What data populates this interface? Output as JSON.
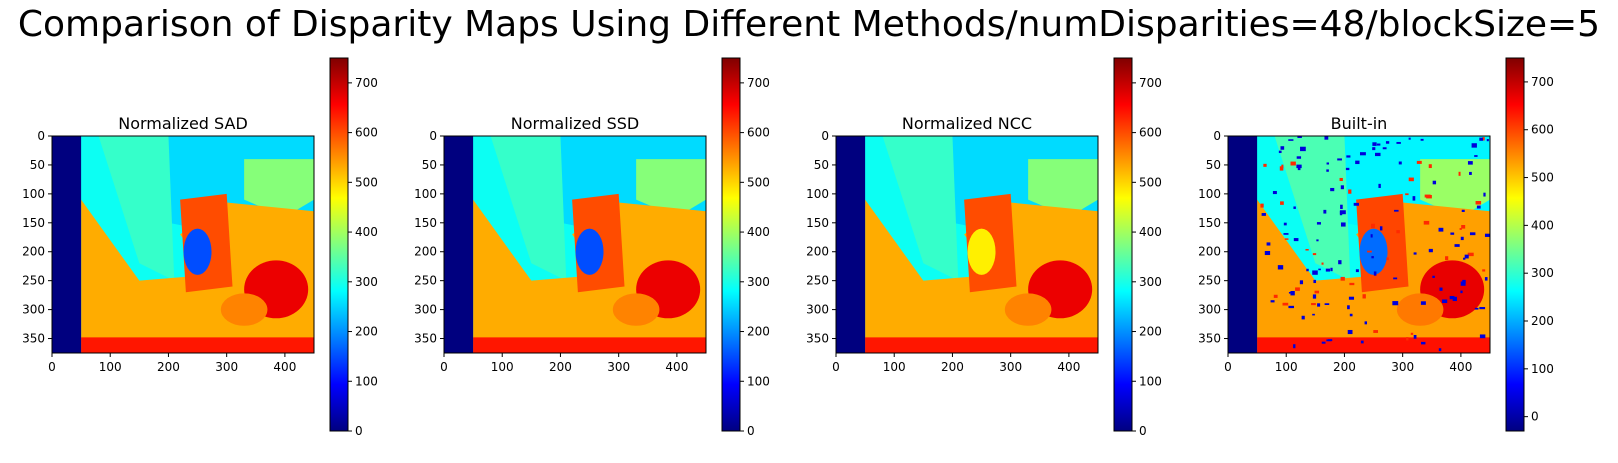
{
  "suptitle": "Comparison of Disparity Maps Using Different Methods/numDisparities=48/blockSize=5",
  "colors": {
    "left_band": "#00007f",
    "frame": "#000000"
  },
  "colormap": "jet",
  "chart_data": [
    {
      "type": "heatmap",
      "title": "Normalized SAD",
      "xlim": [
        0,
        450
      ],
      "ylim": [
        0,
        375
      ],
      "xticks": [
        0,
        100,
        200,
        300,
        400
      ],
      "yticks": [
        0,
        50,
        100,
        150,
        200,
        250,
        300,
        350
      ],
      "colorbar": {
        "range": [
          0,
          750
        ],
        "ticks": [
          0,
          100,
          200,
          300,
          400,
          500,
          600,
          700
        ]
      }
    },
    {
      "type": "heatmap",
      "title": "Normalized SSD",
      "xlim": [
        0,
        450
      ],
      "ylim": [
        0,
        375
      ],
      "xticks": [
        0,
        100,
        200,
        300,
        400
      ],
      "yticks": [
        0,
        50,
        100,
        150,
        200,
        250,
        300,
        350
      ],
      "colorbar": {
        "range": [
          0,
          750
        ],
        "ticks": [
          0,
          100,
          200,
          300,
          400,
          500,
          600,
          700
        ]
      }
    },
    {
      "type": "heatmap",
      "title": "Normalized NCC",
      "xlim": [
        0,
        450
      ],
      "ylim": [
        0,
        375
      ],
      "xticks": [
        0,
        100,
        200,
        300,
        400
      ],
      "yticks": [
        0,
        50,
        100,
        150,
        200,
        250,
        300,
        350
      ],
      "colorbar": {
        "range": [
          0,
          750
        ],
        "ticks": [
          0,
          100,
          200,
          300,
          400,
          500,
          600,
          700
        ]
      }
    },
    {
      "type": "heatmap",
      "title": "Built-in",
      "xlim": [
        0,
        450
      ],
      "ylim": [
        0,
        375
      ],
      "xticks": [
        0,
        100,
        200,
        300,
        400
      ],
      "yticks": [
        0,
        50,
        100,
        150,
        200,
        250,
        300,
        350
      ],
      "colorbar": {
        "range": [
          -30,
          750
        ],
        "ticks": [
          0,
          100,
          200,
          300,
          400,
          500,
          600,
          700
        ]
      }
    }
  ]
}
